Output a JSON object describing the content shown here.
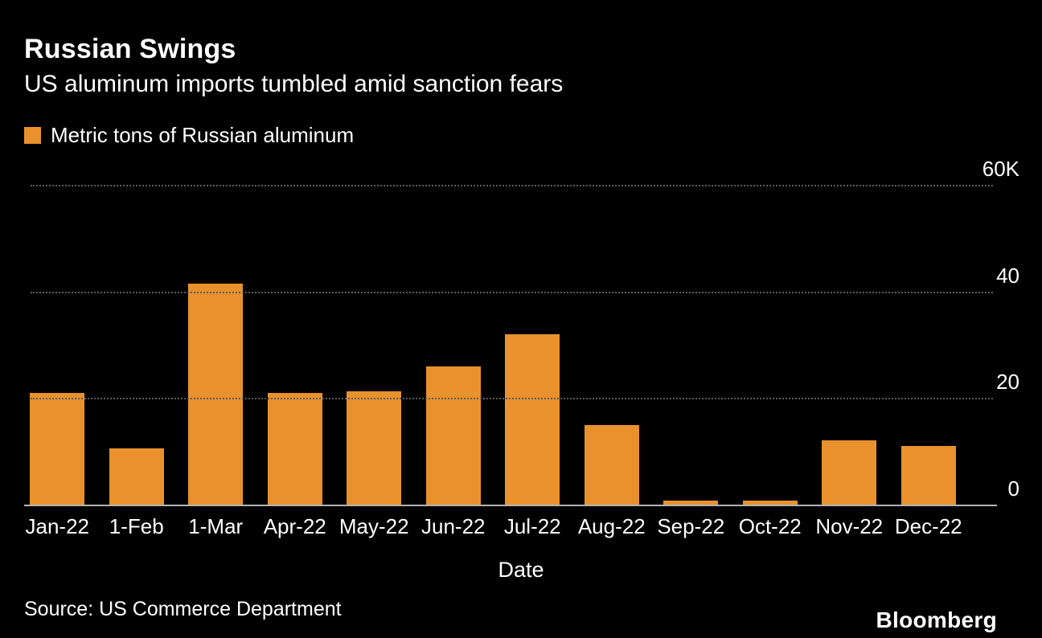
{
  "header": {
    "title": "Russian Swings",
    "subtitle": "US aluminum imports tumbled amid sanction fears"
  },
  "legend": {
    "label": "Metric tons of Russian aluminum",
    "color": "#E8912D"
  },
  "chart_data": {
    "type": "bar",
    "title": "Russian Swings",
    "subtitle": "US aluminum imports tumbled amid sanction fears",
    "categories": [
      "Jan-22",
      "1-Feb",
      "1-Mar",
      "Apr-22",
      "May-22",
      "Jun-22",
      "Jul-22",
      "Aug-22",
      "Sep-22",
      "Oct-22",
      "Nov-22",
      "Dec-22"
    ],
    "values": [
      21000,
      10500,
      41500,
      21000,
      21300,
      26000,
      32000,
      15000,
      700,
      700,
      12000,
      11000
    ],
    "series_name": "Metric tons of Russian aluminum",
    "xlabel": "Date",
    "ylabel": "",
    "ylim": [
      0,
      60000
    ],
    "yticks": [
      {
        "value": 60000,
        "label": "60K"
      },
      {
        "value": 40000,
        "label": "40"
      },
      {
        "value": 20000,
        "label": "20"
      },
      {
        "value": 0,
        "label": "0"
      }
    ],
    "grid": "horizontal-dotted",
    "legend_position": "top-left",
    "bar_color": "#E8912D",
    "background_color": "#000000"
  },
  "footer": {
    "source": "Source:  US Commerce Department",
    "brand": "Bloomberg"
  }
}
